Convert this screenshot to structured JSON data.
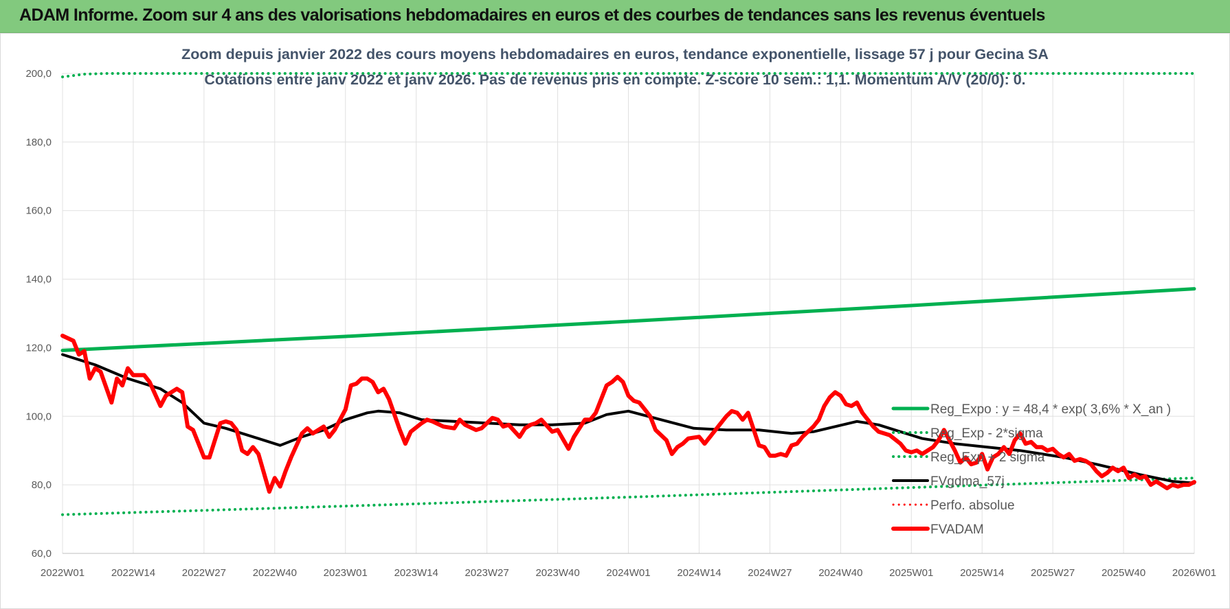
{
  "banner": {
    "title": "ADAM Informe. Zoom sur 4 ans des valorisations hebdomadaires en euros et des courbes de tendances sans les revenus éventuels"
  },
  "colors": {
    "banner_bg": "#82c97e",
    "green": "#00b050",
    "black": "#000000",
    "red": "#ff0000",
    "title_text": "#44546a",
    "tick_text": "#595959",
    "grid": "#e0e0e0"
  },
  "chart_data": {
    "type": "line",
    "title": "Zoom depuis janvier 2022 des cours moyens hebdomadaires en euros, tendance exponentielle, lissage 57 j pour Gecina SA",
    "subtitle": "Cotations entre janv 2022 et janv 2026. Pas de revenus pris en compte. Z-score 10 sem.: 1,1. Momentum A/V (20/0): 0.",
    "xlabel": "",
    "ylabel": "",
    "ylim": [
      60,
      200
    ],
    "yticks": [
      "60,0",
      "80,0",
      "100,0",
      "120,0",
      "140,0",
      "160,0",
      "180,0",
      "200,0"
    ],
    "x_range_weeks": [
      0,
      208
    ],
    "x_ticks": [
      {
        "label": "2022W01",
        "week": 0
      },
      {
        "label": "2022W14",
        "week": 13
      },
      {
        "label": "2022W27",
        "week": 26
      },
      {
        "label": "2022W40",
        "week": 39
      },
      {
        "label": "2023W01",
        "week": 52
      },
      {
        "label": "2023W14",
        "week": 65
      },
      {
        "label": "2023W27",
        "week": 78
      },
      {
        "label": "2023W40",
        "week": 91
      },
      {
        "label": "2024W01",
        "week": 104
      },
      {
        "label": "2024W14",
        "week": 117
      },
      {
        "label": "2024W27",
        "week": 130
      },
      {
        "label": "2024W40",
        "week": 143
      },
      {
        "label": "2025W01",
        "week": 156
      },
      {
        "label": "2025W14",
        "week": 169
      },
      {
        "label": "2025W27",
        "week": 182
      },
      {
        "label": "2025W40",
        "week": 195
      },
      {
        "label": "2026W01",
        "week": 208
      }
    ],
    "grid": true,
    "legend_position": "bottom-right",
    "legend": [
      "Reg_Expo : y = 48,4 * exp( 3,6% *  X_an )",
      "Reg_Exp - 2*sigma",
      "Reg_Exp + 2 sigma",
      "FVgdma_57j",
      "Perfo. absolue",
      "FVADAM"
    ],
    "series": [
      {
        "name": "Reg_Expo : y = 48,4 * exp( 3,6% *  X_an )",
        "color": "#00b050",
        "style": "solid",
        "width": 5,
        "points": [
          [
            0,
            119.2
          ],
          [
            52,
            123.3
          ],
          [
            104,
            127.7
          ],
          [
            156,
            132.3
          ],
          [
            208,
            137.2
          ]
        ]
      },
      {
        "name": "Reg_Exp - 2*sigma",
        "color": "#00b050",
        "style": "dotted",
        "width": 4,
        "points": [
          [
            0,
            71.3
          ],
          [
            52,
            73.8
          ],
          [
            104,
            76.4
          ],
          [
            156,
            79.2
          ],
          [
            208,
            82.0
          ]
        ]
      },
      {
        "name": "Reg_Exp + 2 sigma",
        "color": "#00b050",
        "style": "dotted",
        "width": 4,
        "points": [
          [
            0,
            199.0
          ],
          [
            4,
            199.8
          ],
          [
            8,
            200.0
          ],
          [
            208,
            200.0
          ]
        ]
      },
      {
        "name": "FVgdma_57j",
        "color": "#000000",
        "style": "solid",
        "width": 4,
        "points": [
          [
            0,
            118
          ],
          [
            6,
            115
          ],
          [
            12,
            111
          ],
          [
            18,
            108
          ],
          [
            22,
            104
          ],
          [
            26,
            98
          ],
          [
            30,
            96.5
          ],
          [
            36,
            93.5
          ],
          [
            40,
            91.5
          ],
          [
            44,
            94
          ],
          [
            48,
            96
          ],
          [
            52,
            99
          ],
          [
            56,
            101
          ],
          [
            58,
            101.5
          ],
          [
            62,
            101
          ],
          [
            66,
            99
          ],
          [
            72,
            98.5
          ],
          [
            78,
            98
          ],
          [
            84,
            97.5
          ],
          [
            90,
            97.5
          ],
          [
            96,
            98
          ],
          [
            100,
            100.5
          ],
          [
            104,
            101.5
          ],
          [
            110,
            99
          ],
          [
            116,
            96.5
          ],
          [
            122,
            96
          ],
          [
            128,
            96
          ],
          [
            134,
            95
          ],
          [
            138,
            95.5
          ],
          [
            142,
            97
          ],
          [
            146,
            98.5
          ],
          [
            150,
            97.5
          ],
          [
            154,
            95.5
          ],
          [
            158,
            93.5
          ],
          [
            164,
            92
          ],
          [
            170,
            91
          ],
          [
            176,
            90
          ],
          [
            184,
            88
          ],
          [
            190,
            86
          ],
          [
            198,
            83
          ],
          [
            204,
            81
          ],
          [
            208,
            80.5
          ]
        ]
      },
      {
        "name": "Perfo. absolue",
        "color": "#ff0000",
        "style": "dotted",
        "width": 3,
        "points": []
      },
      {
        "name": "FVADAM",
        "color": "#ff0000",
        "style": "solid",
        "width": 6,
        "points": [
          [
            0,
            123.5
          ],
          [
            2,
            122
          ],
          [
            3,
            118
          ],
          [
            4,
            119
          ],
          [
            5,
            111
          ],
          [
            6,
            114
          ],
          [
            7,
            113
          ],
          [
            9,
            104
          ],
          [
            10,
            111
          ],
          [
            11,
            109
          ],
          [
            12,
            114
          ],
          [
            13,
            112
          ],
          [
            15,
            112
          ],
          [
            16,
            110
          ],
          [
            18,
            103
          ],
          [
            19,
            106
          ],
          [
            21,
            108
          ],
          [
            22,
            107
          ],
          [
            23,
            97
          ],
          [
            24,
            96
          ],
          [
            26,
            88
          ],
          [
            27,
            88
          ],
          [
            29,
            98
          ],
          [
            30,
            98.5
          ],
          [
            31,
            98
          ],
          [
            32,
            96
          ],
          [
            33,
            90
          ],
          [
            34,
            89
          ],
          [
            35,
            91
          ],
          [
            36,
            89
          ],
          [
            38,
            78
          ],
          [
            39,
            82
          ],
          [
            40,
            79.5
          ],
          [
            41,
            84
          ],
          [
            42,
            88
          ],
          [
            44,
            95
          ],
          [
            45,
            96.5
          ],
          [
            46,
            95
          ],
          [
            48,
            97
          ],
          [
            49,
            94
          ],
          [
            50,
            96
          ],
          [
            52,
            102
          ],
          [
            53,
            109
          ],
          [
            54,
            109.5
          ],
          [
            55,
            111
          ],
          [
            56,
            111
          ],
          [
            57,
            110
          ],
          [
            58,
            107
          ],
          [
            59,
            108
          ],
          [
            60,
            105
          ],
          [
            62,
            96
          ],
          [
            63,
            92
          ],
          [
            64,
            95.5
          ],
          [
            66,
            98
          ],
          [
            67,
            99
          ],
          [
            68,
            98.5
          ],
          [
            70,
            97
          ],
          [
            72,
            96.5
          ],
          [
            73,
            99
          ],
          [
            74,
            97.5
          ],
          [
            76,
            96
          ],
          [
            77,
            96.5
          ],
          [
            78,
            98
          ],
          [
            79,
            99.5
          ],
          [
            80,
            99
          ],
          [
            81,
            97
          ],
          [
            82,
            97.5
          ],
          [
            84,
            94
          ],
          [
            85,
            96.5
          ],
          [
            86,
            97.5
          ],
          [
            87,
            98
          ],
          [
            88,
            99
          ],
          [
            90,
            95.5
          ],
          [
            91,
            96
          ],
          [
            93,
            90.5
          ],
          [
            94,
            94
          ],
          [
            96,
            99
          ],
          [
            97,
            99
          ],
          [
            98,
            101
          ],
          [
            100,
            109
          ],
          [
            101,
            110
          ],
          [
            102,
            111.5
          ],
          [
            103,
            110
          ],
          [
            104,
            106
          ],
          [
            105,
            104.5
          ],
          [
            106,
            104
          ],
          [
            107,
            102
          ],
          [
            108,
            100
          ],
          [
            109,
            96
          ],
          [
            111,
            93
          ],
          [
            112,
            89
          ],
          [
            113,
            91
          ],
          [
            114,
            92
          ],
          [
            115,
            93.5
          ],
          [
            117,
            94
          ],
          [
            118,
            92
          ],
          [
            120,
            96
          ],
          [
            122,
            100
          ],
          [
            123,
            101.5
          ],
          [
            124,
            101
          ],
          [
            125,
            99
          ],
          [
            126,
            101
          ],
          [
            128,
            91.5
          ],
          [
            129,
            91
          ],
          [
            130,
            88.5
          ],
          [
            131,
            88.5
          ],
          [
            132,
            89
          ],
          [
            133,
            88.5
          ],
          [
            134,
            91.5
          ],
          [
            135,
            92
          ],
          [
            136,
            94
          ],
          [
            138,
            97
          ],
          [
            139,
            99
          ],
          [
            140,
            103
          ],
          [
            141,
            105.5
          ],
          [
            142,
            107
          ],
          [
            143,
            106
          ],
          [
            144,
            103.5
          ],
          [
            145,
            103
          ],
          [
            146,
            104
          ],
          [
            147,
            101
          ],
          [
            149,
            97
          ],
          [
            150,
            95.5
          ],
          [
            152,
            94.5
          ],
          [
            154,
            92
          ],
          [
            155,
            90
          ],
          [
            156,
            89.5
          ],
          [
            157,
            90
          ],
          [
            158,
            89
          ],
          [
            160,
            91
          ],
          [
            161,
            93
          ],
          [
            162,
            96
          ],
          [
            164,
            90
          ],
          [
            165,
            86.5
          ],
          [
            166,
            88
          ],
          [
            167,
            86
          ],
          [
            168,
            86.5
          ],
          [
            169,
            89
          ],
          [
            170,
            84.5
          ],
          [
            171,
            88
          ],
          [
            172,
            89
          ],
          [
            173,
            91
          ],
          [
            174,
            89
          ],
          [
            175,
            93
          ],
          [
            176,
            95
          ],
          [
            177,
            92
          ],
          [
            178,
            92.5
          ],
          [
            179,
            91
          ],
          [
            180,
            91
          ],
          [
            181,
            90
          ],
          [
            182,
            90.5
          ],
          [
            183,
            89
          ],
          [
            184,
            88
          ],
          [
            185,
            89
          ],
          [
            186,
            87
          ],
          [
            187,
            87.5
          ],
          [
            188,
            87
          ],
          [
            189,
            86
          ],
          [
            190,
            84
          ],
          [
            191,
            82.5
          ],
          [
            192,
            83.5
          ],
          [
            193,
            85
          ],
          [
            194,
            84
          ],
          [
            195,
            85
          ],
          [
            196,
            82
          ],
          [
            197,
            83
          ],
          [
            198,
            82
          ],
          [
            199,
            82.5
          ],
          [
            200,
            80
          ],
          [
            201,
            81
          ],
          [
            202,
            80
          ],
          [
            203,
            79
          ],
          [
            204,
            80
          ],
          [
            205,
            79.5
          ],
          [
            206,
            80
          ],
          [
            207,
            80
          ],
          [
            208,
            80.8
          ]
        ]
      }
    ]
  }
}
